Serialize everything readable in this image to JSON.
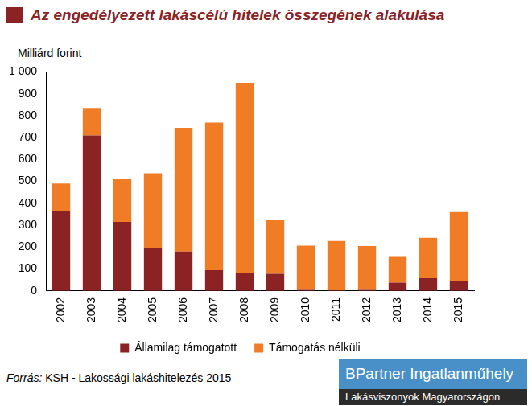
{
  "chart_data": {
    "type": "bar",
    "title": "Az engedélyezett lakáscélú hitelek összegének alakulása",
    "y_label": "Milliárd forint",
    "categories": [
      "2002",
      "2003",
      "2004",
      "2005",
      "2006",
      "2007",
      "2008",
      "2009",
      "2010",
      "2011",
      "2012",
      "2013",
      "2014",
      "2015"
    ],
    "series": [
      {
        "name": "Államilag támogatott",
        "color": "#8b2325",
        "values": [
          365,
          710,
          315,
          195,
          180,
          95,
          80,
          78,
          5,
          2,
          5,
          38,
          58,
          45
        ]
      },
      {
        "name": "Támogatás nélküli",
        "color": "#f07d26",
        "values": [
          125,
          125,
          195,
          342,
          565,
          673,
          870,
          244,
          202,
          226,
          200,
          117,
          185,
          315
        ]
      }
    ],
    "stacked": true,
    "ylim": [
      0,
      1000
    ],
    "yticks": [
      0,
      100,
      200,
      300,
      400,
      500,
      600,
      700,
      800,
      900,
      {
        "value": 1000,
        "label": "1 000"
      }
    ],
    "grid": false,
    "legend": "bottom"
  },
  "footer": {
    "source_label": "Forrás:",
    "source_text": "KSH - Lakossági lakáshitelezés 2015",
    "logo_title": "BPartner Ingatlanműhely",
    "logo_subtitle": "Lakásviszonyok Magyarországon"
  }
}
